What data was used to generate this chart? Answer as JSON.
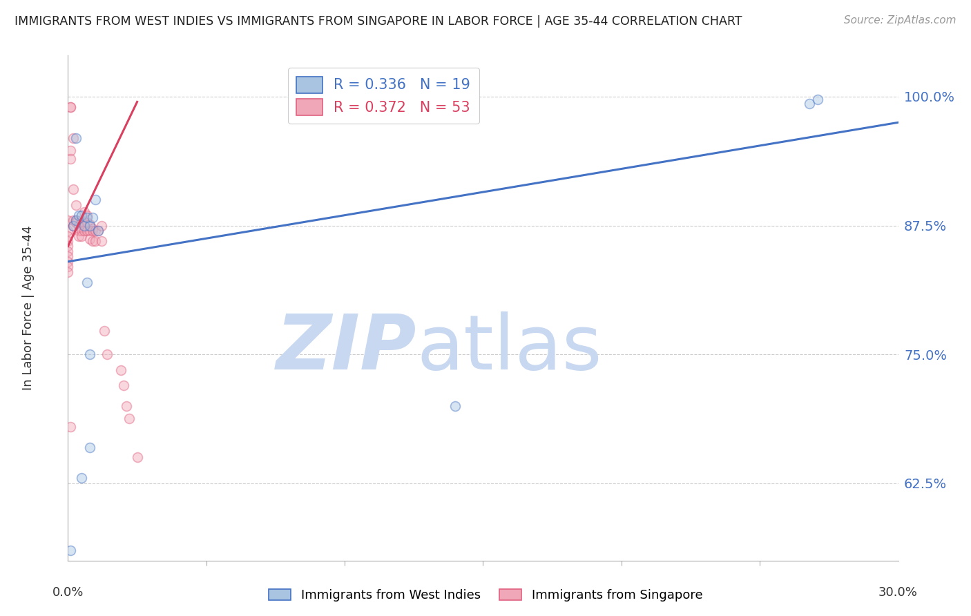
{
  "title": "IMMIGRANTS FROM WEST INDIES VS IMMIGRANTS FROM SINGAPORE IN LABOR FORCE | AGE 35-44 CORRELATION CHART",
  "source": "Source: ZipAtlas.com",
  "ylabel": "In Labor Force | Age 35-44",
  "xlim": [
    0.0,
    0.3
  ],
  "ylim": [
    0.55,
    1.04
  ],
  "legend_blue_r": "R = 0.336",
  "legend_blue_n": "N = 19",
  "legend_pink_r": "R = 0.372",
  "legend_pink_n": "N = 53",
  "label_blue": "Immigrants from West Indies",
  "label_pink": "Immigrants from Singapore",
  "blue_color": "#A8C4E0",
  "pink_color": "#F0A8B8",
  "blue_edge_color": "#4472C4",
  "pink_edge_color": "#E06080",
  "blue_line_color": "#4472C4",
  "pink_line_color": "#D94060",
  "watermark_zip": "ZIP",
  "watermark_atlas": "atlas",
  "watermark_color": "#C8D8F0",
  "tick_label_color": "#4472C4",
  "ytick_positions": [
    0.625,
    0.75,
    0.875,
    1.0
  ],
  "ytick_labels": [
    "62.5%",
    "75.0%",
    "87.5%",
    "100.0%"
  ],
  "blue_scatter_x": [
    0.002,
    0.003,
    0.004,
    0.005,
    0.006,
    0.007,
    0.008,
    0.009,
    0.01,
    0.011,
    0.003,
    0.14,
    0.005,
    0.007,
    0.008,
    0.008,
    0.268,
    0.271,
    0.001
  ],
  "blue_scatter_y": [
    0.875,
    0.88,
    0.885,
    0.885,
    0.875,
    0.883,
    0.875,
    0.883,
    0.9,
    0.87,
    0.96,
    0.7,
    0.63,
    0.82,
    0.75,
    0.66,
    0.993,
    0.997,
    0.56
  ],
  "pink_scatter_x": [
    0.0,
    0.0,
    0.0,
    0.0,
    0.0,
    0.0,
    0.0,
    0.0,
    0.0,
    0.0,
    0.001,
    0.001,
    0.002,
    0.002,
    0.002,
    0.002,
    0.003,
    0.003,
    0.003,
    0.004,
    0.004,
    0.004,
    0.005,
    0.005,
    0.005,
    0.006,
    0.006,
    0.006,
    0.006,
    0.007,
    0.007,
    0.007,
    0.008,
    0.008,
    0.008,
    0.009,
    0.009,
    0.009,
    0.01,
    0.01,
    0.011,
    0.012,
    0.012,
    0.013,
    0.014,
    0.019,
    0.02,
    0.021,
    0.022,
    0.025,
    0.001,
    0.001,
    0.001
  ],
  "pink_scatter_y": [
    0.88,
    0.87,
    0.865,
    0.86,
    0.855,
    0.85,
    0.845,
    0.84,
    0.835,
    0.83,
    0.99,
    0.99,
    0.96,
    0.91,
    0.88,
    0.875,
    0.895,
    0.88,
    0.878,
    0.875,
    0.87,
    0.865,
    0.88,
    0.87,
    0.865,
    0.888,
    0.878,
    0.875,
    0.87,
    0.885,
    0.878,
    0.87,
    0.876,
    0.87,
    0.862,
    0.872,
    0.87,
    0.86,
    0.87,
    0.86,
    0.87,
    0.875,
    0.86,
    0.773,
    0.75,
    0.735,
    0.72,
    0.7,
    0.688,
    0.65,
    0.948,
    0.94,
    0.68
  ],
  "blue_trend_x": [
    0.0,
    0.3
  ],
  "blue_trend_y": [
    0.84,
    0.975
  ],
  "pink_trend_x": [
    0.0,
    0.025
  ],
  "pink_trend_y": [
    0.855,
    0.995
  ],
  "marker_size": 100,
  "marker_alpha": 0.45,
  "marker_edge_width": 1.2
}
